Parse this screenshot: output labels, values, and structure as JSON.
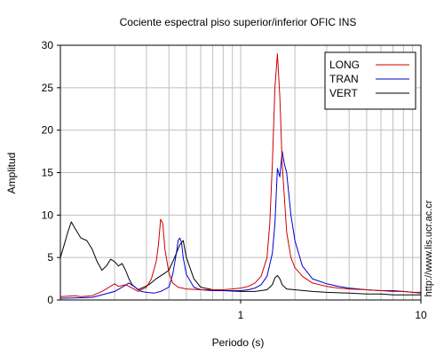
{
  "chart_data": {
    "type": "line",
    "title": "Cociente espectral piso superior/inferior  OFIC INS",
    "xlabel": "Periodo (s)",
    "ylabel": "Amplitud",
    "xscale": "log",
    "xlim": [
      0.1,
      10
    ],
    "ylim": [
      0,
      30
    ],
    "grid": true,
    "legend_position": "top-right",
    "x_tick_labels": [
      "1",
      "10"
    ],
    "y_tick_labels": [
      "0",
      "5",
      "10",
      "15",
      "20",
      "25",
      "30"
    ],
    "y_ticks": [
      0,
      5,
      10,
      15,
      20,
      25,
      30
    ],
    "side_text": "http://www.lis.ucr.ac.cr",
    "series": [
      {
        "name": "LONG",
        "color": "#cc0000",
        "x": [
          0.1,
          0.12,
          0.13,
          0.15,
          0.17,
          0.2,
          0.21,
          0.23,
          0.25,
          0.27,
          0.3,
          0.32,
          0.34,
          0.35,
          0.36,
          0.37,
          0.38,
          0.4,
          0.42,
          0.45,
          0.5,
          0.6,
          0.7,
          0.8,
          0.9,
          1.0,
          1.1,
          1.2,
          1.3,
          1.4,
          1.45,
          1.5,
          1.55,
          1.6,
          1.65,
          1.7,
          1.8,
          1.9,
          2.0,
          2.2,
          2.5,
          3.0,
          3.5,
          4.0,
          5.0,
          6.0,
          7.0,
          8.0,
          9.0,
          10.0
        ],
        "y": [
          0.4,
          0.5,
          0.4,
          0.5,
          1.0,
          1.9,
          1.6,
          1.8,
          1.4,
          1.0,
          1.5,
          2.5,
          4.5,
          6.5,
          9.5,
          9.0,
          6.0,
          3.2,
          2.0,
          1.5,
          1.3,
          1.2,
          1.2,
          1.2,
          1.3,
          1.4,
          1.6,
          2.0,
          2.8,
          5.0,
          9.0,
          16.0,
          25.0,
          29.0,
          24.0,
          16.0,
          8.0,
          5.0,
          3.8,
          2.8,
          2.0,
          1.6,
          1.4,
          1.3,
          1.2,
          1.1,
          1.0,
          1.0,
          0.9,
          0.9
        ]
      },
      {
        "name": "TRAN",
        "color": "#0000cc",
        "x": [
          0.1,
          0.15,
          0.2,
          0.22,
          0.24,
          0.26,
          0.28,
          0.3,
          0.33,
          0.36,
          0.4,
          0.42,
          0.44,
          0.45,
          0.46,
          0.47,
          0.48,
          0.5,
          0.55,
          0.6,
          0.7,
          0.8,
          0.9,
          1.0,
          1.1,
          1.2,
          1.3,
          1.4,
          1.5,
          1.55,
          1.6,
          1.65,
          1.7,
          1.75,
          1.8,
          1.9,
          2.0,
          2.2,
          2.5,
          3.0,
          3.5,
          4.0,
          5.0,
          6.0,
          7.0,
          8.0,
          9.0,
          10.0
        ],
        "y": [
          0.2,
          0.3,
          1.0,
          1.5,
          2.0,
          1.5,
          1.0,
          0.9,
          0.8,
          1.0,
          1.5,
          3.0,
          5.5,
          7.0,
          7.3,
          6.8,
          5.0,
          3.0,
          1.5,
          1.2,
          1.1,
          1.1,
          1.1,
          1.1,
          1.2,
          1.4,
          1.8,
          2.8,
          5.5,
          9.0,
          15.5,
          14.5,
          17.5,
          16.0,
          15.0,
          10.0,
          7.0,
          4.0,
          2.5,
          1.9,
          1.6,
          1.4,
          1.2,
          1.1,
          1.1,
          1.0,
          0.9,
          0.8
        ]
      },
      {
        "name": "VERT",
        "color": "#000000",
        "x": [
          0.1,
          0.105,
          0.11,
          0.115,
          0.12,
          0.13,
          0.14,
          0.15,
          0.16,
          0.17,
          0.18,
          0.19,
          0.2,
          0.21,
          0.22,
          0.23,
          0.24,
          0.25,
          0.27,
          0.29,
          0.31,
          0.34,
          0.37,
          0.4,
          0.43,
          0.46,
          0.48,
          0.5,
          0.55,
          0.6,
          0.7,
          0.8,
          1.0,
          1.2,
          1.4,
          1.5,
          1.55,
          1.6,
          1.65,
          1.7,
          1.8,
          2.0,
          2.5,
          3.0,
          4.0,
          5.0,
          6.0,
          7.0,
          8.0,
          10.0
        ],
        "y": [
          5.0,
          6.5,
          8.0,
          9.2,
          8.5,
          7.3,
          7.0,
          6.0,
          4.5,
          3.5,
          4.0,
          4.8,
          4.5,
          4.0,
          4.3,
          3.5,
          2.5,
          1.8,
          1.2,
          1.5,
          1.8,
          2.5,
          3.0,
          3.5,
          5.0,
          6.5,
          7.0,
          5.0,
          2.5,
          1.5,
          1.2,
          1.1,
          1.0,
          1.0,
          1.2,
          1.8,
          2.6,
          2.9,
          2.5,
          1.8,
          1.3,
          1.2,
          1.0,
          0.9,
          0.8,
          0.7,
          0.7,
          0.6,
          0.6,
          0.6
        ]
      }
    ]
  }
}
